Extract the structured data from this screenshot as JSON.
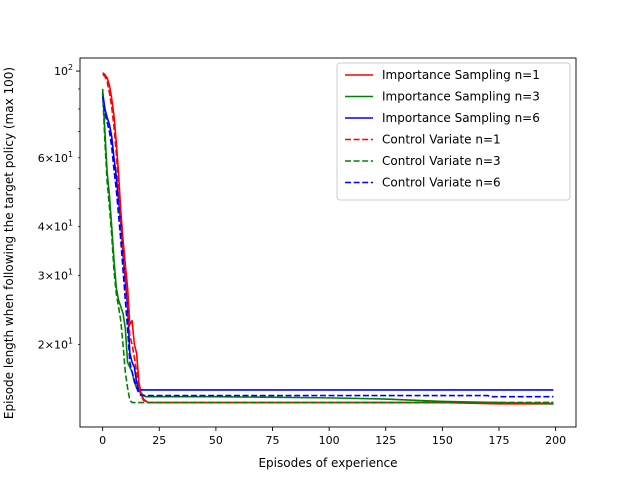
{
  "chart_data": {
    "type": "line",
    "title": "",
    "xlabel": "Episodes of experience",
    "ylabel": "Episode length when following the target policy (max 100)",
    "xlim": [
      -10,
      209
    ],
    "xticks": [
      0,
      25,
      50,
      75,
      100,
      125,
      150,
      175,
      200
    ],
    "ylim": [
      12.3,
      108
    ],
    "yscale": "log",
    "yticks_major": [
      {
        "value": 100,
        "base": "10",
        "exp": "2"
      }
    ],
    "yticks_minor": [
      {
        "value": 20,
        "mant": "2",
        "base": "10",
        "exp": "1"
      },
      {
        "value": 30,
        "mant": "3",
        "base": "10",
        "exp": "1"
      },
      {
        "value": 40,
        "mant": "4",
        "base": "10",
        "exp": "1"
      },
      {
        "value": 60,
        "mant": "6",
        "base": "10",
        "exp": "1"
      }
    ],
    "times_sign": "×",
    "grid": false,
    "legend_position": "top-right",
    "series": [
      {
        "name": "Importance Sampling n=1",
        "color": "#ff0000",
        "style": "solid",
        "x": [
          0,
          1,
          2,
          3,
          4,
          5,
          6,
          7,
          8,
          9,
          10,
          11,
          12,
          13,
          14,
          15,
          16,
          17,
          18,
          20,
          25,
          50,
          100,
          150,
          175,
          199
        ],
        "y": [
          99,
          98,
          96,
          92,
          85,
          77,
          66,
          55,
          44,
          37,
          32,
          28,
          22.5,
          23,
          20,
          19,
          16,
          15,
          14.5,
          14.2,
          14.2,
          14.2,
          14.2,
          14.2,
          14.1,
          14.1
        ]
      },
      {
        "name": "Importance Sampling n=3",
        "color": "#008000",
        "style": "solid",
        "x": [
          0,
          1,
          2,
          3,
          4,
          5,
          6,
          7,
          8,
          9,
          10,
          11,
          12,
          13,
          14,
          15,
          17,
          19,
          25,
          50,
          100,
          125,
          150,
          175,
          199
        ],
        "y": [
          90,
          70,
          55,
          48,
          40,
          33,
          28,
          26,
          25,
          24,
          22,
          18,
          17.5,
          17,
          16,
          15.5,
          15,
          14.7,
          14.7,
          14.7,
          14.6,
          14.5,
          14.3,
          14.2,
          14.1
        ]
      },
      {
        "name": "Importance Sampling n=6",
        "color": "#0000ff",
        "style": "solid",
        "x": [
          0,
          1,
          2,
          3,
          4,
          5,
          6,
          7,
          8,
          9,
          10,
          11,
          12,
          13,
          14,
          15,
          16,
          25,
          50,
          100,
          150,
          175,
          199
        ],
        "y": [
          88,
          80,
          76,
          73,
          68,
          60,
          54,
          47,
          41,
          34,
          29,
          25,
          19,
          18,
          17.5,
          16,
          15.3,
          15.3,
          15.3,
          15.3,
          15.3,
          15.3,
          15.3
        ]
      },
      {
        "name": "Control Variate n=1",
        "color": "#ff0000",
        "style": "dashed",
        "x": [
          0,
          1,
          2,
          3,
          4,
          5,
          6,
          7,
          8,
          9,
          10,
          11,
          12,
          13,
          14,
          15,
          16,
          17,
          18,
          20,
          25,
          50,
          100,
          150,
          175,
          199
        ],
        "y": [
          98,
          97,
          94,
          88,
          81,
          72,
          62,
          51,
          42,
          35,
          30,
          26,
          21,
          20,
          18.5,
          17,
          15.5,
          14.8,
          14.4,
          14.2,
          14.2,
          14.2,
          14.2,
          14.2,
          14.2,
          14.2
        ]
      },
      {
        "name": "Control Variate n=3",
        "color": "#008000",
        "style": "dashed",
        "x": [
          0,
          1,
          2,
          3,
          4,
          5,
          6,
          7,
          8,
          9,
          10,
          11,
          12,
          13,
          15,
          25,
          50,
          100,
          150,
          175,
          199
        ],
        "y": [
          88,
          66,
          52,
          45,
          38,
          31,
          27,
          25,
          23,
          20,
          17,
          15.5,
          14.4,
          14.2,
          14.2,
          14.2,
          14.2,
          14.2,
          14.2,
          14.2,
          14.2
        ]
      },
      {
        "name": "Control Variate n=6",
        "color": "#0000ff",
        "style": "dashed",
        "x": [
          0,
          1,
          2,
          3,
          4,
          5,
          6,
          7,
          8,
          9,
          10,
          11,
          12,
          13,
          14,
          15,
          16,
          17,
          25,
          50,
          100,
          150,
          170,
          172,
          199
        ],
        "y": [
          86,
          78,
          74,
          70,
          64,
          56,
          50,
          43,
          37,
          31,
          26,
          22,
          18,
          17,
          16.2,
          15.5,
          15,
          14.8,
          14.8,
          14.8,
          14.8,
          14.8,
          14.8,
          14.7,
          14.7
        ]
      }
    ]
  }
}
